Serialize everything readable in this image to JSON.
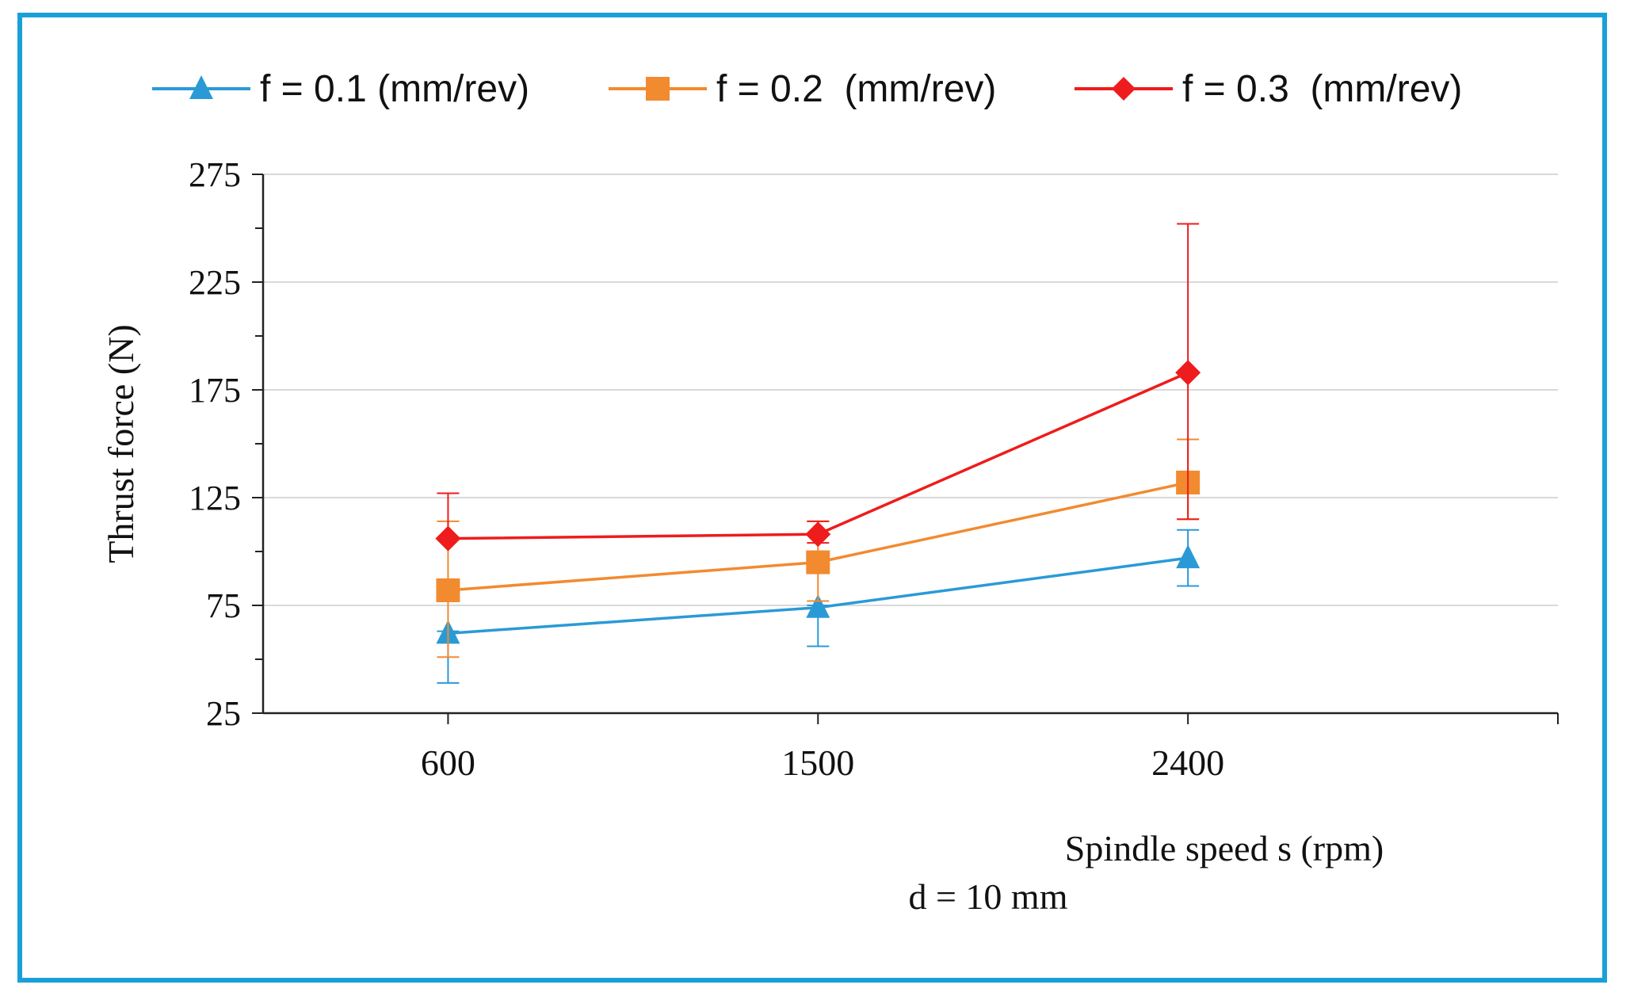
{
  "chart_data": {
    "type": "line",
    "xlabel": "Spindle speed s (rpm)",
    "ylabel": "Thrust force (N)",
    "annotation": "d = 10 mm",
    "categories": [
      "600",
      "1500",
      "2400"
    ],
    "ylim": [
      25,
      275
    ],
    "yticks": [
      25,
      75,
      125,
      175,
      225,
      275
    ],
    "grid": true,
    "legend_position": "top",
    "series": [
      {
        "name": "f = 0.1 (mm/rev)",
        "color": "#2a9ad6",
        "marker": "triangle",
        "values": [
          62,
          74,
          97
        ],
        "err_low": [
          39,
          56,
          84
        ],
        "err_high": [
          63,
          75,
          110
        ]
      },
      {
        "name": "f = 0.2  (mm/rev)",
        "color": "#f28a30",
        "marker": "square",
        "values": [
          82,
          95,
          132
        ],
        "err_low": [
          51,
          77,
          115
        ],
        "err_high": [
          114,
          114,
          152
        ]
      },
      {
        "name": "f = 0.3  (mm/rev)",
        "color": "#ee1c1c",
        "marker": "diamond",
        "values": [
          106,
          108,
          183
        ],
        "err_low": [
          106,
          104,
          115
        ],
        "err_high": [
          127,
          114,
          252
        ]
      }
    ]
  }
}
